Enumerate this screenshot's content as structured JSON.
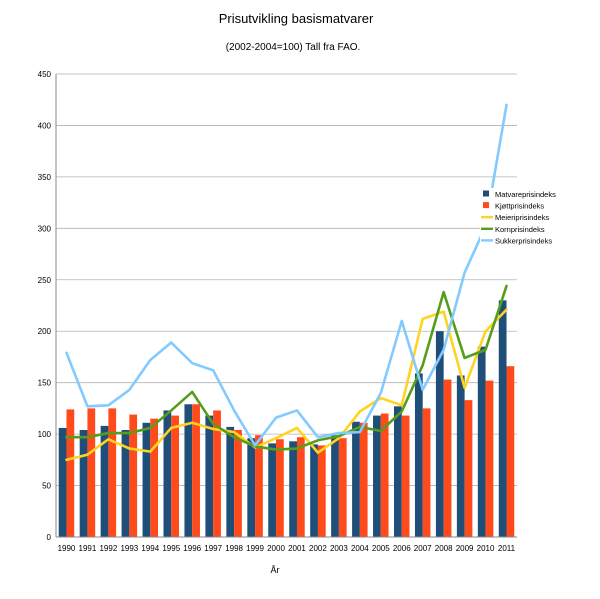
{
  "chart_data": {
    "type": "bar",
    "title": "Prisutvikling basismatvarer",
    "subtitle": "(2002-2004=100) Tall fra FAO.",
    "xlabel": "År",
    "ylabel": "",
    "ylim": [
      0,
      450
    ],
    "yticks": [
      0,
      50,
      100,
      150,
      200,
      250,
      300,
      350,
      400,
      450
    ],
    "grid": "horizontal",
    "legend_position": "right",
    "categories": [
      "1990",
      "1991",
      "1992",
      "1993",
      "1994",
      "1995",
      "1996",
      "1997",
      "1998",
      "1999",
      "2000",
      "2001",
      "2002",
      "2003",
      "2004",
      "2005",
      "2006",
      "2007",
      "2008",
      "2009",
      "2010",
      "2011"
    ],
    "bar_series": [
      {
        "name": "Matvareprisindeks",
        "color": "#1f4e79",
        "values": [
          106,
          104,
          108,
          104,
          111,
          123,
          129,
          118,
          107,
          96,
          91,
          93,
          90,
          99,
          112,
          118,
          127,
          159,
          200,
          157,
          185,
          230
        ]
      },
      {
        "name": "Kjøttprisindeks",
        "color": "#ff4a1c",
        "values": [
          124,
          125,
          125,
          119,
          115,
          118,
          129,
          123,
          104,
          99,
          95,
          97,
          89,
          96,
          111,
          120,
          118,
          125,
          153,
          133,
          152,
          166
        ]
      }
    ],
    "line_series": [
      {
        "name": "Meieriprisindeks",
        "color": "#ffd320",
        "values": [
          75,
          80,
          95,
          86,
          83,
          106,
          111,
          105,
          102,
          87,
          96,
          106,
          82,
          96,
          122,
          135,
          128,
          212,
          219,
          145,
          200,
          221
        ]
      },
      {
        "name": "Kornprisindeks",
        "color": "#579d1c",
        "values": [
          97,
          97,
          101,
          101,
          106,
          123,
          141,
          110,
          97,
          88,
          85,
          86,
          94,
          98,
          107,
          103,
          122,
          167,
          238,
          174,
          182,
          244
        ]
      },
      {
        "name": "Sukkerprisindeks",
        "color": "#83caff",
        "values": [
          179,
          127,
          128,
          143,
          172,
          189,
          169,
          162,
          123,
          89,
          116,
          123,
          97,
          101,
          102,
          140,
          210,
          143,
          182,
          257,
          302,
          420
        ]
      }
    ]
  }
}
